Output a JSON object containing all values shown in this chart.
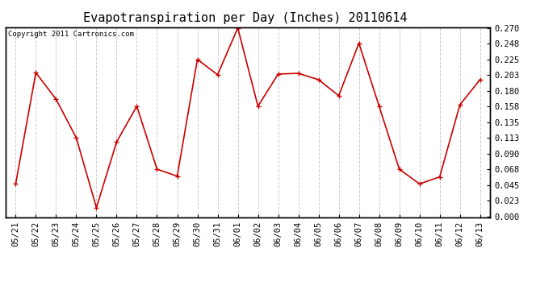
{
  "title": "Evapotranspiration per Day (Inches) 20110614",
  "copyright_text": "Copyright 2011 Cartronics.com",
  "x_labels": [
    "05/21",
    "05/22",
    "05/23",
    "05/24",
    "05/25",
    "05/26",
    "05/27",
    "05/28",
    "05/29",
    "05/30",
    "05/31",
    "06/01",
    "06/02",
    "06/03",
    "06/04",
    "06/05",
    "06/06",
    "06/07",
    "06/08",
    "06/09",
    "06/10",
    "06/11",
    "06/12",
    "06/13"
  ],
  "y_values": [
    0.047,
    0.206,
    0.168,
    0.113,
    0.013,
    0.107,
    0.158,
    0.068,
    0.058,
    0.225,
    0.203,
    0.27,
    0.158,
    0.204,
    0.205,
    0.196,
    0.173,
    0.248,
    0.158,
    0.068,
    0.047,
    0.057,
    0.16,
    0.196
  ],
  "line_color": "#cc0000",
  "marker": "+",
  "marker_color": "#cc0000",
  "marker_size": 5,
  "bg_color": "#ffffff",
  "plot_bg_color": "#ffffff",
  "grid_color": "#cccccc",
  "grid_style": "--",
  "y_min": 0.0,
  "y_max": 0.27,
  "y_tick_values": [
    0.0,
    0.023,
    0.045,
    0.068,
    0.09,
    0.113,
    0.135,
    0.158,
    0.18,
    0.203,
    0.225,
    0.248,
    0.27
  ],
  "title_fontsize": 11,
  "copyright_fontsize": 6.5,
  "tick_fontsize": 7.5,
  "border_color": "#000000"
}
